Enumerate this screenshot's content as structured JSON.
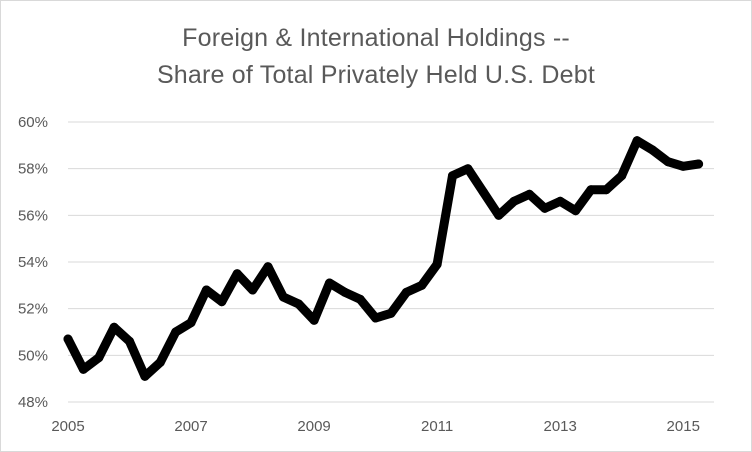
{
  "chart_data": {
    "type": "line",
    "title": "Foreign & International Holdings --",
    "subtitle": "Share of Total Privately Held U.S. Debt",
    "xlabel": "",
    "ylabel": "",
    "y_tick_labels": [
      "48%",
      "50%",
      "52%",
      "54%",
      "56%",
      "58%",
      "60%"
    ],
    "y_ticks": [
      48,
      50,
      52,
      54,
      56,
      58,
      60
    ],
    "x_tick_labels": [
      "2005",
      "2007",
      "2009",
      "2011",
      "2013",
      "2015"
    ],
    "x_ticks": [
      2005,
      2007,
      2009,
      2011,
      2013,
      2015
    ],
    "ylim": [
      48,
      60
    ],
    "xlim": [
      2005,
      2015.5
    ],
    "grid": true,
    "line_color": "#000000",
    "grid_color": "#d9d9d9",
    "series": [
      {
        "x": [
          2005.0,
          2005.25,
          2005.5,
          2005.75,
          2006.0,
          2006.25,
          2006.5,
          2006.75,
          2007.0,
          2007.25,
          2007.5,
          2007.75,
          2008.0,
          2008.25,
          2008.5,
          2008.75,
          2009.0,
          2009.25,
          2009.5,
          2009.75,
          2010.0,
          2010.25,
          2010.5,
          2010.75,
          2011.0,
          2011.25,
          2011.5,
          2011.75,
          2012.0,
          2012.25,
          2012.5,
          2012.75,
          2013.0,
          2013.25,
          2013.5,
          2013.75,
          2014.0,
          2014.25,
          2014.5,
          2014.75,
          2015.0,
          2015.25
        ],
        "values": [
          50.7,
          49.4,
          49.9,
          51.2,
          50.6,
          49.1,
          49.7,
          51.0,
          51.4,
          52.8,
          52.3,
          53.5,
          52.8,
          53.8,
          52.5,
          52.2,
          51.5,
          53.1,
          52.7,
          52.4,
          51.6,
          51.8,
          52.7,
          53.0,
          53.9,
          57.7,
          58.0,
          57.0,
          56.0,
          56.6,
          56.9,
          56.3,
          56.6,
          56.2,
          57.1,
          57.1,
          57.7,
          59.2,
          58.8,
          58.3,
          58.1,
          58.2
        ]
      }
    ]
  }
}
